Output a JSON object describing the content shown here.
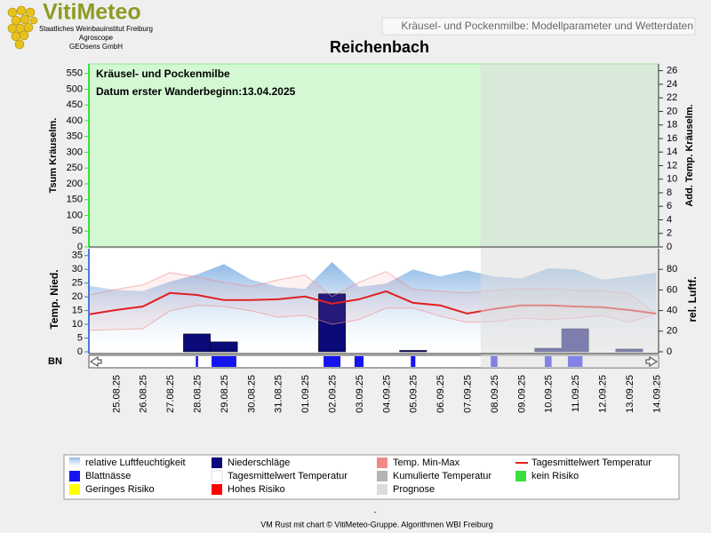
{
  "header": {
    "logo": "VitiMeteo",
    "logo_lines": [
      "Staatliches Weinbauinstitut Freiburg",
      "Agroscope",
      "GEOsens GmbH"
    ],
    "banner": "Kräusel- und Pockenmilbe: Modellparameter und Wetterdaten"
  },
  "chart_data": [
    {
      "type": "line",
      "title": "Reichenbach",
      "annotations": [
        "Kräusel- und Pockenmilbe",
        "Datum  erster Wanderbeginn:13.04.2025"
      ],
      "ylabel": "Tsum Kräuselm.",
      "y2label": "Add. Temp. Kräuselm.",
      "ylim": [
        0,
        580
      ],
      "yticks": [
        0,
        50,
        100,
        150,
        200,
        250,
        300,
        350,
        400,
        450,
        500,
        550
      ],
      "y2lim": [
        0,
        27
      ],
      "y2ticks": [
        0,
        2,
        4,
        6,
        8,
        10,
        12,
        14,
        16,
        18,
        20,
        22,
        24,
        26
      ]
    },
    {
      "type": "combo",
      "ylabel": "Temp. Nied.",
      "y2label": "rel. Luftf.",
      "row_label": "BN",
      "ylim": [
        0,
        37.5
      ],
      "yticks": [
        0,
        5,
        10,
        15,
        20,
        25,
        30,
        35
      ],
      "y2lim": [
        0,
        100
      ],
      "y2ticks": [
        0,
        20,
        40,
        60,
        80
      ],
      "forecast_from": "08.09.25",
      "categories": [
        null,
        "25.08.25",
        "26.08.25",
        "27.08.25",
        "28.08.25",
        "29.08.25",
        "30.08.25",
        "31.08.25",
        "01.09.25",
        "02.09.25",
        "03.09.25",
        "04.09.25",
        "05.09.25",
        "06.09.25",
        "07.09.25",
        "08.09.25",
        "09.09.25",
        "10.09.25",
        "11.09.25",
        "12.09.25",
        "13.09.25",
        "14.09.25"
      ],
      "series": [
        {
          "name": "relative Luftfeuchtigkeit",
          "style": "area",
          "axis": "y2",
          "color": "#7fb0e4",
          "values": [
            64,
            60,
            59,
            68,
            75,
            85,
            70,
            63,
            61,
            87,
            63,
            66,
            80,
            73,
            79,
            73,
            71,
            81,
            80,
            70,
            73,
            77
          ]
        },
        {
          "name": "Niederschläge",
          "style": "bar",
          "color": "#0a0a78",
          "values": [
            0,
            0,
            0,
            0,
            6.5,
            3.6,
            0,
            0,
            0,
            21.1,
            0,
            0,
            0.5,
            0,
            0,
            0,
            0,
            1.3,
            8.4,
            0,
            1.0,
            0
          ]
        },
        {
          "name": "Temp. Min-Max",
          "style": "band",
          "color": "#f08a8a",
          "high": [
            20.7,
            22.7,
            24.3,
            28.8,
            27.2,
            25.3,
            23.7,
            26.2,
            27.9,
            20.1,
            25.3,
            29.2,
            22.7,
            22.0,
            21.4,
            22.4,
            23.0,
            23.0,
            22.4,
            22.4,
            21.1,
            13.9
          ],
          "low": [
            7.8,
            8.1,
            8.4,
            14.9,
            16.9,
            16.5,
            14.9,
            12.6,
            13.3,
            10.0,
            11.7,
            15.9,
            15.9,
            13.0,
            10.7,
            11.0,
            12.3,
            11.7,
            12.3,
            13.3,
            10.7,
            13.9
          ]
        },
        {
          "name": "Tagesmittelwert Temperatur",
          "style": "line",
          "color": "#e02020",
          "values": [
            13.6,
            15.2,
            16.5,
            21.4,
            20.7,
            18.8,
            18.8,
            19.1,
            20.1,
            17.5,
            19.1,
            22.0,
            17.8,
            16.9,
            13.9,
            15.6,
            16.9,
            16.9,
            16.5,
            16.2,
            15.2,
            13.9
          ]
        },
        {
          "name": "Blattnässe",
          "style": "strip",
          "color": "#1414f0",
          "values": [
            0,
            0,
            0,
            0,
            2,
            22,
            0,
            0,
            0,
            15,
            8,
            0,
            4,
            0,
            0,
            6,
            0,
            6,
            13,
            0,
            0,
            0
          ]
        },
        {
          "name": "Tagesmittelwert Temperatur",
          "style": "box",
          "color": "#ffffff"
        },
        {
          "name": "Kumulierte Temperatur",
          "style": "box",
          "color": "#b4b4b4"
        },
        {
          "name": "kein Risiko",
          "style": "box",
          "color": "#3ce03c"
        },
        {
          "name": "Geringes Risiko",
          "style": "box",
          "color": "#ffff00"
        },
        {
          "name": "Hohes Risiko",
          "style": "box",
          "color": "#ff0000"
        },
        {
          "name": "Prognose",
          "style": "box",
          "color": "#dcdcdc"
        }
      ]
    }
  ],
  "footer": [
    "-",
    "VM Rust mit chart © VitiMeteo-Gruppe. Algorithmen WBI Freiburg"
  ]
}
